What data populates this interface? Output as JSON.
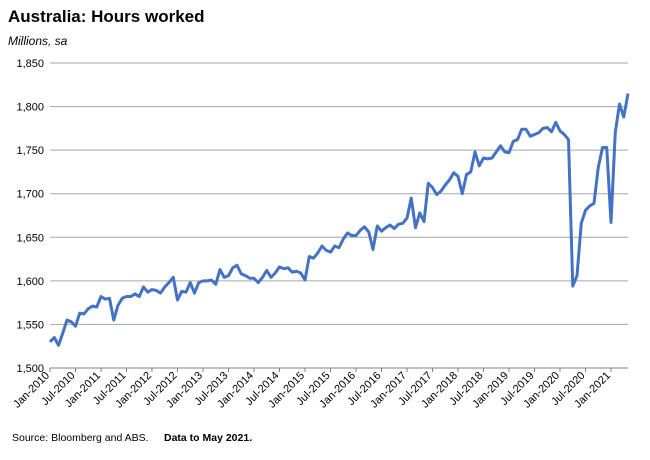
{
  "chart_data": {
    "type": "line",
    "title": "Australia: Hours worked",
    "subtitle": "Millions, sa",
    "source": "Source: Bloomberg and ABS.",
    "note": "Data to May 2021.",
    "color": "#4472c4",
    "grid": true,
    "categories": [
      "Jan-2010",
      null,
      null,
      null,
      null,
      null,
      "Jul-2010",
      null,
      null,
      null,
      null,
      null,
      "Jan-2011",
      null,
      null,
      null,
      null,
      null,
      "Jul-2011",
      null,
      null,
      null,
      null,
      null,
      "Jan-2012",
      null,
      null,
      null,
      null,
      null,
      "Jul-2012",
      null,
      null,
      null,
      null,
      null,
      "Jan-2013",
      null,
      null,
      null,
      null,
      null,
      "Jul-2013",
      null,
      null,
      null,
      null,
      null,
      "Jan-2014",
      null,
      null,
      null,
      null,
      null,
      "Jul-2014",
      null,
      null,
      null,
      null,
      null,
      "Jan-2015",
      null,
      null,
      null,
      null,
      null,
      "Jul-2015",
      null,
      null,
      null,
      null,
      null,
      "Jan-2016",
      null,
      null,
      null,
      null,
      null,
      "Jul-2016",
      null,
      null,
      null,
      null,
      null,
      "Jan-2017",
      null,
      null,
      null,
      null,
      null,
      "Jul-2017",
      null,
      null,
      null,
      null,
      null,
      "Jan-2018",
      null,
      null,
      null,
      null,
      null,
      "Jul-2018",
      null,
      null,
      null,
      null,
      null,
      "Jan-2019",
      null,
      null,
      null,
      null,
      null,
      "Jul-2019",
      null,
      null,
      null,
      null,
      null,
      "Jan-2020",
      null,
      null,
      null,
      null,
      null,
      "Jul-2020",
      null,
      null,
      null,
      null,
      null,
      "Jan-2021",
      null,
      null,
      null,
      null
    ],
    "values": [
      1530,
      1535,
      1526,
      1540,
      1555,
      1553,
      1548,
      1563,
      1562,
      1568,
      1571,
      1570,
      1582,
      1579,
      1580,
      1555,
      1572,
      1580,
      1582,
      1582,
      1585,
      1582,
      1593,
      1587,
      1590,
      1589,
      1586,
      1593,
      1598,
      1604,
      1578,
      1588,
      1587,
      1598,
      1586,
      1598,
      1600,
      1600,
      1601,
      1596,
      1613,
      1604,
      1606,
      1615,
      1618,
      1608,
      1606,
      1603,
      1603,
      1598,
      1604,
      1612,
      1604,
      1609,
      1616,
      1614,
      1615,
      1610,
      1611,
      1609,
      1601,
      1628,
      1626,
      1632,
      1640,
      1635,
      1633,
      1640,
      1638,
      1648,
      1655,
      1652,
      1652,
      1658,
      1662,
      1656,
      1636,
      1663,
      1657,
      1661,
      1664,
      1660,
      1665,
      1666,
      1672,
      1695,
      1661,
      1678,
      1668,
      1712,
      1707,
      1699,
      1703,
      1710,
      1716,
      1724,
      1720,
      1700,
      1722,
      1725,
      1748,
      1732,
      1741,
      1740,
      1741,
      1748,
      1755,
      1748,
      1747,
      1760,
      1762,
      1774,
      1774,
      1766,
      1768,
      1770,
      1775,
      1776,
      1771,
      1782,
      1772,
      1768,
      1762,
      1594,
      1606,
      1666,
      1681,
      1686,
      1689,
      1730,
      1753,
      1753,
      1667,
      1770,
      1803,
      1788,
      1815
    ],
    "ylim": [
      1500,
      1850
    ],
    "yticks": [
      {
        "value": 1500,
        "label": "1,500"
      },
      {
        "value": 1550,
        "label": "1,550"
      },
      {
        "value": 1600,
        "label": "1,600"
      },
      {
        "value": 1650,
        "label": "1,650"
      },
      {
        "value": 1700,
        "label": "1,700"
      },
      {
        "value": 1750,
        "label": "1,750"
      },
      {
        "value": 1800,
        "label": "1,800"
      },
      {
        "value": 1850,
        "label": "1,850"
      }
    ]
  }
}
